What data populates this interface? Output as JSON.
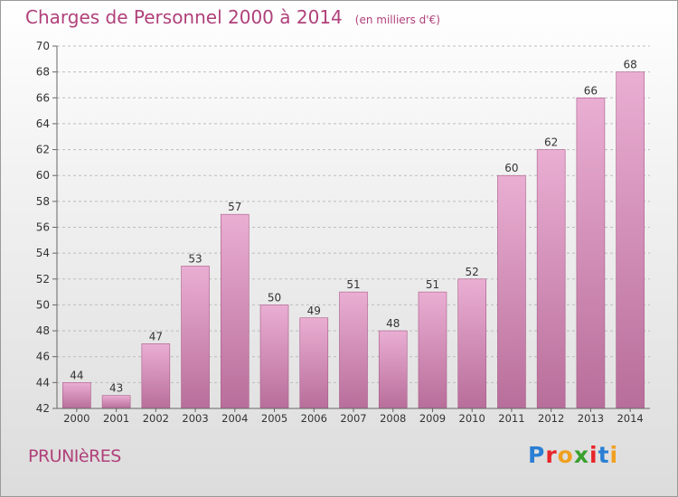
{
  "title": "Charges de Personnel 2000 à 2014",
  "unit": "(en milliers d'€)",
  "commune": "PRUNIèRES",
  "logo": {
    "letters": [
      {
        "char": "P",
        "color": "#2a7fd4"
      },
      {
        "char": "r",
        "color": "#e8262a"
      },
      {
        "char": "o",
        "color": "#f0a020"
      },
      {
        "char": "x",
        "color": "#3aa02e"
      },
      {
        "char": "i",
        "color": "#e8262a"
      },
      {
        "char": "t",
        "color": "#2a7fd4"
      },
      {
        "char": "i",
        "color": "#f0a020"
      }
    ]
  },
  "colors": {
    "bar_top": "#eaaed3",
    "bar_bottom": "#b86e9a",
    "bar_edge": "#a95a88",
    "axis_text": "#333333",
    "grid": "#bdbdbd"
  },
  "chart_data": {
    "type": "bar",
    "categories": [
      "2000",
      "2001",
      "2002",
      "2003",
      "2004",
      "2005",
      "2006",
      "2007",
      "2008",
      "2009",
      "2010",
      "2011",
      "2012",
      "2013",
      "2014"
    ],
    "values": [
      44,
      43,
      47,
      53,
      57,
      50,
      49,
      51,
      48,
      51,
      52,
      60,
      62,
      66,
      68
    ],
    "ylim": [
      42,
      70
    ],
    "yticks": [
      42,
      44,
      46,
      48,
      50,
      52,
      54,
      56,
      58,
      60,
      62,
      64,
      66,
      68,
      70
    ],
    "grid": true,
    "data_labels": true
  }
}
